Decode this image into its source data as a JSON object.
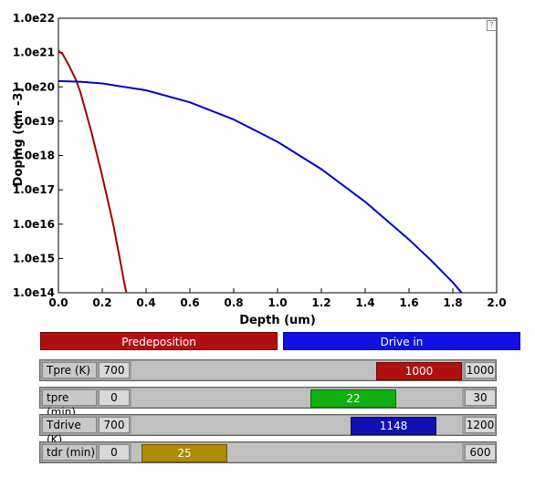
{
  "chart_data": {
    "type": "line",
    "xlabel": "Depth (um)",
    "ylabel": "Doping (cm -3)",
    "xlim": [
      0,
      2.0
    ],
    "ylim_log10": [
      14,
      22
    ],
    "x_ticks": [
      "0.0",
      "0.2",
      "0.4",
      "0.6",
      "0.8",
      "1.0",
      "1.2",
      "1.4",
      "1.6",
      "1.8",
      "2.0"
    ],
    "y_ticks": [
      "1.0e14",
      "1.0e15",
      "1.0e16",
      "1.0e17",
      "1.0e18",
      "1.0e19",
      "1.0e20",
      "1.0e21",
      "1.0e22"
    ],
    "series": [
      {
        "color": "#a00000",
        "x": [
          0.0,
          0.02,
          0.05,
          0.08,
          0.1,
          0.15,
          0.2,
          0.25,
          0.28,
          0.3,
          0.31
        ],
        "log10_y": [
          21.05,
          20.95,
          20.6,
          20.2,
          19.85,
          18.7,
          17.4,
          16.0,
          15.0,
          14.3,
          14.0
        ]
      },
      {
        "color": "#0000cc",
        "x": [
          0.0,
          0.1,
          0.2,
          0.4,
          0.6,
          0.8,
          1.0,
          1.2,
          1.4,
          1.6,
          1.7,
          1.8,
          1.84
        ],
        "log10_y": [
          20.17,
          20.15,
          20.1,
          19.9,
          19.55,
          19.05,
          18.4,
          17.6,
          16.65,
          15.55,
          14.95,
          14.3,
          14.0
        ]
      }
    ]
  },
  "help_icon": "?",
  "tabs": {
    "predeposition": "Predeposition",
    "drive_in": "Drive in"
  },
  "sliders": [
    {
      "label": "Tpre (K)",
      "min": "700",
      "max": "1000",
      "value": "1000",
      "fraction": 1.0,
      "color": "#b01010"
    },
    {
      "label": "tpre (min)",
      "min": "0",
      "max": "30",
      "value": "22",
      "fraction": 0.733,
      "color": "#10b010"
    },
    {
      "label": "Tdrive (K)",
      "min": "700",
      "max": "1200",
      "value": "1148",
      "fraction": 0.896,
      "color": "#1010b0"
    },
    {
      "label": "tdr (min)",
      "min": "0",
      "max": "600",
      "value": "25",
      "fraction": 0.042,
      "color": "#b08a00"
    }
  ]
}
